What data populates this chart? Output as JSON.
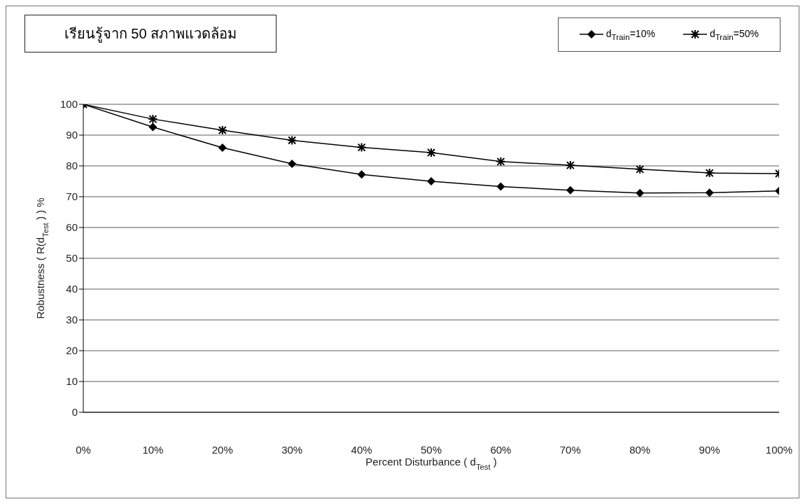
{
  "chart_data": {
    "type": "line",
    "title": "เรียนรู้จาก 50 สภาพแวดล้อม",
    "xlabel": "Percent Disturbance ( d$_{Test}$ )",
    "ylabel": "Robustness ( R(d$_{Test}$ ) ) %",
    "categories": [
      "0%",
      "10%",
      "20%",
      "30%",
      "40%",
      "50%",
      "60%",
      "70%",
      "80%",
      "90%",
      "100%"
    ],
    "series": [
      {
        "name": "d$_{Train}$=10%",
        "color": "#000000",
        "marker": "diamond",
        "values": [
          100,
          92.6,
          85.9,
          80.7,
          77.2,
          75,
          73.3,
          72.1,
          71.2,
          71.3,
          71.9
        ]
      },
      {
        "name": "d$_{Train}$=50%",
        "color": "#000000",
        "marker": "cross",
        "values": [
          100,
          95.2,
          91.6,
          88.3,
          86,
          84.3,
          81.4,
          80.2,
          78.9,
          77.7,
          77.5
        ]
      }
    ],
    "ylim": [
      0,
      100
    ],
    "yticks": [
      0,
      10,
      20,
      30,
      40,
      50,
      60,
      70,
      80,
      90,
      100
    ],
    "grid": "y",
    "legend": "top right",
    "line_style": "solid"
  }
}
